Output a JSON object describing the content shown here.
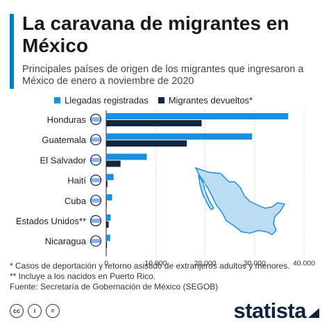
{
  "header": {
    "title": "La caravana de migrantes en México",
    "subtitle": "Principales países de origen de los migrantes que ingresaron a México de enero a noviembre de 2020"
  },
  "legend": {
    "series_1": "Llegadas registradas",
    "series_2": "Migrantes devueltos*"
  },
  "colors": {
    "series_1": "#1a8fe0",
    "series_2": "#13263f",
    "accent": "#0080c8",
    "map_fill": "#bcdcf3"
  },
  "chart_data": {
    "type": "bar",
    "orientation": "horizontal",
    "categories": [
      "Honduras",
      "Guatemala",
      "El Salvador",
      "Haití",
      "Cuba",
      "Estados Unidos**",
      "Nicaragua"
    ],
    "series": [
      {
        "name": "Llegadas registradas",
        "values": [
          36800,
          29500,
          8200,
          1500,
          1200,
          900,
          800
        ]
      },
      {
        "name": "Migrantes devueltos*",
        "values": [
          19300,
          16300,
          2900,
          250,
          100,
          500,
          150
        ]
      }
    ],
    "xticks": [
      "0",
      "10.000",
      "20.000",
      "30.000",
      "40.000"
    ],
    "xlim": [
      0,
      40000
    ],
    "grid": true
  },
  "footnotes": [
    "*   Casos de deportación y retorno asistido de extranjeros adultos y menores.",
    "** Incluye a los nacidos en Puerto Rico.",
    "Fuente: Secretaría de Gobernación de México (SEGOB)"
  ],
  "footer": {
    "brand": "statista",
    "license_icons": [
      "cc-icon",
      "by-icon",
      "nd-icon"
    ],
    "cc_labels": [
      "cc",
      "i",
      "="
    ]
  }
}
